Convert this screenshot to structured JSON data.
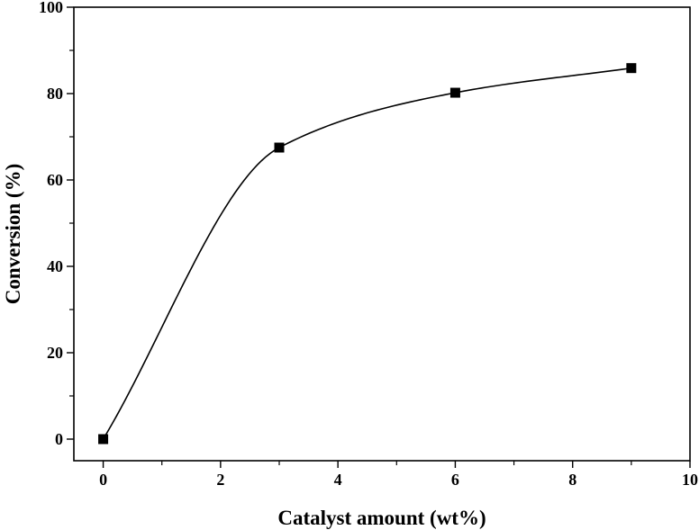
{
  "chart_data": {
    "type": "scatter",
    "title": "",
    "xlabel": "Catalyst amount (wt%)",
    "ylabel": "Conversion (%)",
    "xlim": [
      -0.5,
      10
    ],
    "ylim": [
      -5,
      100
    ],
    "xticks": [
      0,
      2,
      4,
      6,
      8,
      10
    ],
    "yticks": [
      0,
      20,
      40,
      60,
      80,
      100
    ],
    "xticks_minor": [
      1,
      3,
      5,
      7,
      9
    ],
    "yticks_minor": [
      10,
      30,
      50,
      70,
      90
    ],
    "grid": false,
    "legend": "none",
    "marker": "square",
    "line": "smooth",
    "colors": {
      "marker": "#000000",
      "line": "#000000",
      "axes": "#000000"
    },
    "series": [
      {
        "x": [
          0,
          3,
          6,
          9
        ],
        "y": [
          0,
          67.5,
          80.2,
          85.9
        ]
      }
    ]
  }
}
